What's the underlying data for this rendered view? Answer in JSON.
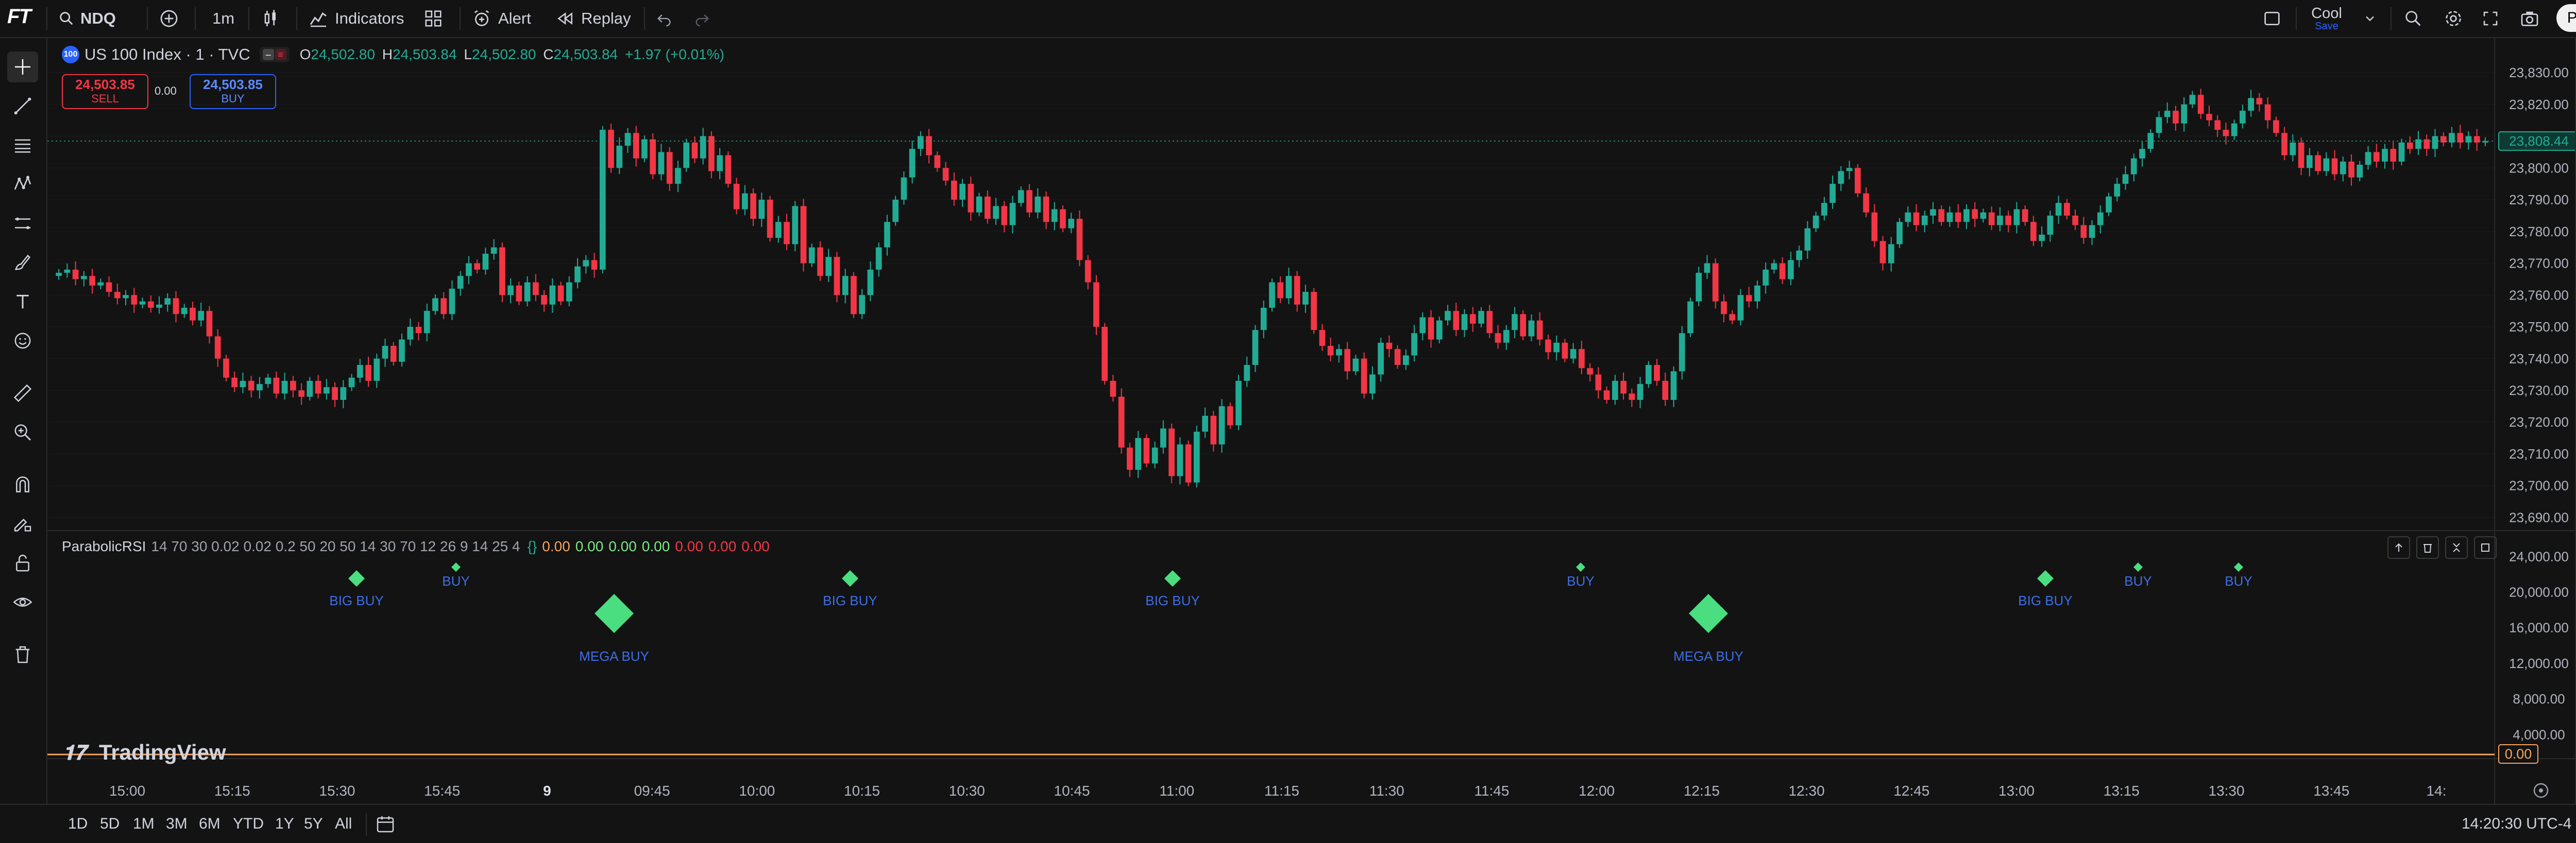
{
  "topbar": {
    "logo": "FT",
    "symbol": "NDQ",
    "interval": "1m",
    "indicators_label": "Indicators",
    "alert_label": "Alert",
    "replay_label": "Replay",
    "layout_name": "Cool",
    "layout_save": "Save",
    "publish_label": "Publish"
  },
  "legend": {
    "title": "US 100 Index · 1 · TVC",
    "o_label": "O",
    "o_value": "24,502.80",
    "h_label": "H",
    "h_value": "24,503.84",
    "l_label": "L",
    "l_value": "24,502.80",
    "c_label": "C",
    "c_value": "24,503.84",
    "change": "+1.97 (+0.01%)",
    "sell_price": "24,503.85",
    "sell_label": "SELL",
    "spread": "0.00",
    "buy_price": "24,503.85",
    "buy_label": "BUY"
  },
  "indicator": {
    "name": "ParabolicRSI",
    "params": "14 70 30 0.02 0.02 0.2 50 20 50 14 30 70 12 26 9 14 25 4",
    "values": [
      "0.00",
      "0.00",
      "0.00",
      "0.00",
      "0.00",
      "0.00",
      "0.00"
    ],
    "current_value": "0.00"
  },
  "price_axis": {
    "labels": [
      "23,830.00",
      "23,820.00",
      "23,810.00",
      "23,800.00",
      "23,790.00",
      "23,780.00",
      "23,770.00",
      "23,760.00",
      "23,750.00",
      "23,740.00",
      "23,730.00",
      "23,720.00",
      "23,710.00",
      "23,700.00",
      "23,690.00"
    ],
    "current_price": "23,808.44"
  },
  "indicator_axis": {
    "labels": [
      "24,000.00",
      "20,000.00",
      "16,000.00",
      "12,000.00",
      "8,000.00",
      "4,000.00"
    ]
  },
  "time_axis": {
    "labels": [
      "15:00",
      "15:15",
      "15:30",
      "15:45",
      "9",
      "09:45",
      "10:00",
      "10:15",
      "10:30",
      "10:45",
      "11:00",
      "11:15",
      "11:30",
      "11:45",
      "12:00",
      "12:15",
      "12:30",
      "12:45",
      "13:00",
      "13:15",
      "13:30",
      "13:45",
      "14:"
    ]
  },
  "signals": [
    {
      "label": "BIG BUY",
      "size": "m"
    },
    {
      "label": "BUY",
      "size": "s"
    },
    {
      "label": "MEGA BUY",
      "size": "l"
    },
    {
      "label": "BIG BUY",
      "size": "m"
    },
    {
      "label": "BIG BUY",
      "size": "m"
    },
    {
      "label": "BUY",
      "size": "s"
    },
    {
      "label": "MEGA BUY",
      "size": "l"
    },
    {
      "label": "BIG BUY",
      "size": "m"
    },
    {
      "label": "BUY",
      "size": "s"
    },
    {
      "label": "BUY",
      "size": "s"
    }
  ],
  "watermark": "TradingView",
  "bottombar": {
    "ranges": [
      "1D",
      "5D",
      "1M",
      "3M",
      "6M",
      "YTD",
      "1Y",
      "5Y",
      "All"
    ],
    "clock": "14:20:30 UTC-4"
  },
  "chart_data": {
    "type": "candlestick",
    "series_points_close": [
      23767,
      23768,
      23765,
      23766,
      23763,
      23764,
      23761,
      23759,
      23760,
      23757,
      23758,
      23756,
      23757,
      23759,
      23754,
      23756,
      23752,
      23755,
      23747,
      23740,
      23734,
      23731,
      23733,
      23730,
      23732,
      23734,
      23729,
      23733,
      23730,
      23728,
      23733,
      23729,
      23731,
      23727,
      23731,
      23734,
      23738,
      23733,
      23740,
      23744,
      23739,
      23746,
      23750,
      23748,
      23755,
      23759,
      23754,
      23762,
      23766,
      23770,
      23768,
      23773,
      23775,
      23760,
      23763,
      23758,
      23764,
      23760,
      23757,
      23763,
      23758,
      23764,
      23769,
      23771,
      23768,
      23812,
      23800,
      23807,
      23811,
      23803,
      23809,
      23798,
      23805,
      23795,
      23800,
      23808,
      23803,
      23810,
      23799,
      23804,
      23795,
      23787,
      23792,
      23784,
      23790,
      23778,
      23783,
      23776,
      23788,
      23770,
      23775,
      23766,
      23772,
      23760,
      23766,
      23754,
      23760,
      23768,
      23775,
      23783,
      23790,
      23797,
      23806,
      23810,
      23804,
      23800,
      23796,
      23790,
      23795,
      23786,
      23791,
      23784,
      23788,
      23782,
      23789,
      23793,
      23786,
      23791,
      23783,
      23787,
      23781,
      23784,
      23771,
      23764,
      23750,
      23733,
      23728,
      23712,
      23705,
      23715,
      23707,
      23712,
      23718,
      23703,
      23713,
      23701,
      23717,
      23722,
      23713,
      23725,
      23719,
      23733,
      23738,
      23749,
      23756,
      23764,
      23759,
      23766,
      23757,
      23761,
      23749,
      23744,
      23741,
      23743,
      23736,
      23740,
      23729,
      23735,
      23745,
      23743,
      23738,
      23741,
      23748,
      23753,
      23746,
      23752,
      23755,
      23749,
      23754,
      23751,
      23755,
      23748,
      23745,
      23749,
      23754,
      23747,
      23752,
      23746,
      23742,
      23745,
      23740,
      23743,
      23737,
      23735,
      23730,
      23727,
      23733,
      23729,
      23727,
      23732,
      23738,
      23733,
      23727,
      23736,
      23748,
      23758,
      23767,
      23770,
      23758,
      23754,
      23752,
      23760,
      23758,
      23763,
      23768,
      23770,
      23765,
      23771,
      23774,
      23781,
      23785,
      23789,
      23795,
      23799,
      23800,
      23792,
      23786,
      23777,
      23770,
      23776,
      23783,
      23786,
      23782,
      23785,
      23787,
      23783,
      23786,
      23783,
      23787,
      23784,
      23786,
      23782,
      23785,
      23782,
      23787,
      23783,
      23777,
      23779,
      23785,
      23789,
      23785,
      23782,
      23778,
      23782,
      23786,
      23791,
      23795,
      23798,
      23803,
      23806,
      23811,
      23816,
      23818,
      23814,
      23820,
      23823,
      23817,
      23815,
      23812,
      23810,
      23814,
      23818,
      23822,
      23820,
      23815,
      23811,
      23804,
      23808,
      23800,
      23804,
      23799,
      23803,
      23798,
      23802,
      23797,
      23801,
      23805,
      23802,
      23806,
      23802,
      23808,
      23806,
      23809,
      23806,
      23810,
      23808,
      23811,
      23808,
      23810,
      23808,
      23808.44
    ],
    "ylim": [
      23687,
      23836
    ],
    "x_range": [
      "14:50",
      "14:20"
    ],
    "indicator_panel": {
      "ylim": [
        2000,
        25000
      ]
    }
  }
}
